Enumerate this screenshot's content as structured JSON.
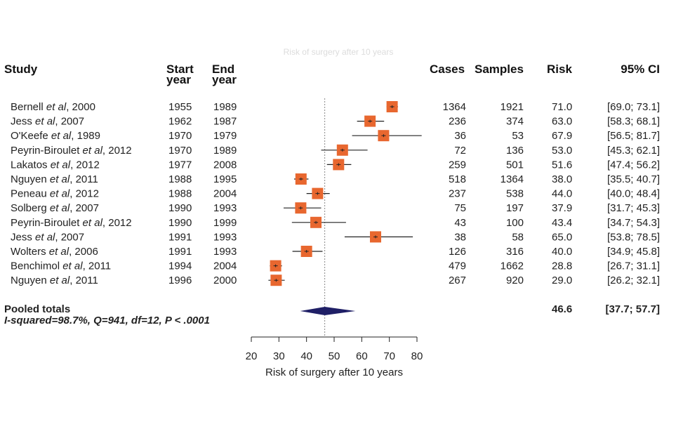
{
  "faint_title": "Risk of surgery after 10 years",
  "headers": {
    "study": "Study",
    "start_1": "Start",
    "start_2": "year",
    "end_1": "End",
    "end_2": "year",
    "cases": "Cases",
    "samples": "Samples",
    "risk": "Risk",
    "ci": "95% CI"
  },
  "colors": {
    "box": "#e8672f",
    "diamond": "#1f1f66",
    "line": "#222222",
    "reference_line": "#888888"
  },
  "chart_data": {
    "type": "forest",
    "xlabel": "Risk of surgery after 10 years",
    "xlim": [
      20,
      80
    ],
    "xticks": [
      20,
      30,
      40,
      50,
      60,
      70,
      80
    ],
    "reference_line": 46.6,
    "studies": [
      {
        "author": "Bernell",
        "suffix": ", 2000",
        "start": "1955",
        "end": "1989",
        "cases": "1364",
        "samples": "1921",
        "risk": 71.0,
        "risk_label": "71.0",
        "ci_low": 69.0,
        "ci_high": 73.1,
        "ci_label": "[69.0; 73.1]"
      },
      {
        "author": "Jess",
        "suffix": ", 2007",
        "start": "1962",
        "end": "1987",
        "cases": "236",
        "samples": "374",
        "risk": 63.0,
        "risk_label": "63.0",
        "ci_low": 58.3,
        "ci_high": 68.1,
        "ci_label": "[58.3; 68.1]"
      },
      {
        "author": "O'Keefe",
        "suffix": ", 1989",
        "start": "1970",
        "end": "1979",
        "cases": "36",
        "samples": "53",
        "risk": 67.9,
        "risk_label": "67.9",
        "ci_low": 56.5,
        "ci_high": 81.7,
        "ci_label": "[56.5; 81.7]"
      },
      {
        "author": "Peyrin-Biroulet",
        "suffix": ", 2012",
        "start": "1970",
        "end": "1989",
        "cases": "72",
        "samples": "136",
        "risk": 53.0,
        "risk_label": "53.0",
        "ci_low": 45.3,
        "ci_high": 62.1,
        "ci_label": "[45.3; 62.1]"
      },
      {
        "author": "Lakatos",
        "suffix": ", 2012",
        "start": "1977",
        "end": "2008",
        "cases": "259",
        "samples": "501",
        "risk": 51.6,
        "risk_label": "51.6",
        "ci_low": 47.4,
        "ci_high": 56.2,
        "ci_label": "[47.4; 56.2]"
      },
      {
        "author": "Nguyen",
        "suffix": ", 2011",
        "start": "1988",
        "end": "1995",
        "cases": "518",
        "samples": "1364",
        "risk": 38.0,
        "risk_label": "38.0",
        "ci_low": 35.5,
        "ci_high": 40.7,
        "ci_label": "[35.5; 40.7]"
      },
      {
        "author": "Peneau",
        "suffix": ", 2012",
        "start": "1988",
        "end": "2004",
        "cases": "237",
        "samples": "538",
        "risk": 44.0,
        "risk_label": "44.0",
        "ci_low": 40.0,
        "ci_high": 48.4,
        "ci_label": "[40.0; 48.4]"
      },
      {
        "author": "Solberg",
        "suffix": ", 2007",
        "start": "1990",
        "end": "1993",
        "cases": "75",
        "samples": "197",
        "risk": 37.9,
        "risk_label": "37.9",
        "ci_low": 31.7,
        "ci_high": 45.3,
        "ci_label": "[31.7; 45.3]"
      },
      {
        "author": "Peyrin-Biroulet",
        "suffix": ", 2012",
        "start": "1990",
        "end": "1999",
        "cases": "43",
        "samples": "100",
        "risk": 43.4,
        "risk_label": "43.4",
        "ci_low": 34.7,
        "ci_high": 54.3,
        "ci_label": "[34.7; 54.3]"
      },
      {
        "author": "Jess",
        "suffix": ", 2007",
        "start": "1991",
        "end": "1993",
        "cases": "38",
        "samples": "58",
        "risk": 65.0,
        "risk_label": "65.0",
        "ci_low": 53.8,
        "ci_high": 78.5,
        "ci_label": "[53.8; 78.5]"
      },
      {
        "author": "Wolters",
        "suffix": ", 2006",
        "start": "1991",
        "end": "1993",
        "cases": "126",
        "samples": "316",
        "risk": 40.0,
        "risk_label": "40.0",
        "ci_low": 34.9,
        "ci_high": 45.8,
        "ci_label": "[34.9; 45.8]"
      },
      {
        "author": "Benchimol",
        "suffix": ", 2011",
        "start": "1994",
        "end": "2004",
        "cases": "479",
        "samples": "1662",
        "risk": 28.8,
        "risk_label": "28.8",
        "ci_low": 26.7,
        "ci_high": 31.1,
        "ci_label": "[26.7; 31.1]"
      },
      {
        "author": "Nguyen",
        "suffix": ", 2011",
        "start": "1996",
        "end": "2000",
        "cases": "267",
        "samples": "920",
        "risk": 29.0,
        "risk_label": "29.0",
        "ci_low": 26.2,
        "ci_high": 32.1,
        "ci_label": "[26.2; 32.1]"
      }
    ],
    "pooled": {
      "label": "Pooled totals",
      "risk": 46.6,
      "risk_label": "46.6",
      "ci_low": 37.7,
      "ci_high": 57.7,
      "ci_label": "[37.7; 57.7]",
      "heterogeneity": "I-squared=98.7%, Q=941, df=12, P < .0001"
    }
  }
}
